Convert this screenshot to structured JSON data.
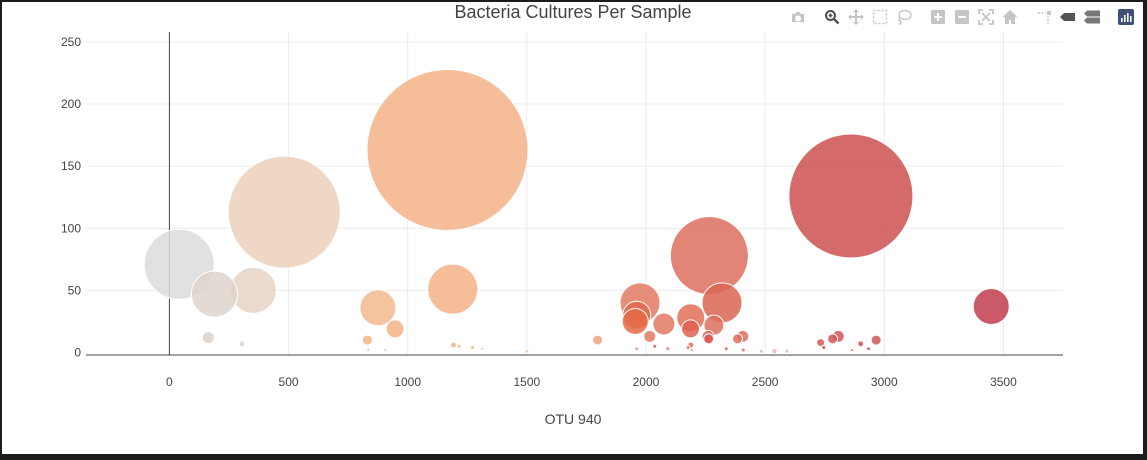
{
  "chart_data": {
    "type": "scatter",
    "title": "Bacteria Cultures Per Sample",
    "xlabel": "OTU 940",
    "ylabel": "",
    "xlim": [
      -350,
      3750
    ],
    "ylim": [
      -2,
      258
    ],
    "xticks": [
      0,
      500,
      1000,
      1500,
      2000,
      2500,
      3000,
      3500
    ],
    "yticks": [
      0,
      50,
      100,
      150,
      200,
      250
    ],
    "grid": true,
    "marker_size_unit": "diameter_px",
    "points": [
      {
        "x": 1167,
        "y": 163,
        "size": 161,
        "color": "#f4b287"
      },
      {
        "x": 2860,
        "y": 126,
        "size": 124,
        "color": "#cc5050"
      },
      {
        "x": 482,
        "y": 113,
        "size": 112,
        "color": "#ecd0bb"
      },
      {
        "x": 2266,
        "y": 78,
        "size": 78,
        "color": "#dd6e5e"
      },
      {
        "x": 41,
        "y": 71,
        "size": 70,
        "color": "#dcdcdc"
      },
      {
        "x": 1189,
        "y": 51,
        "size": 50,
        "color": "#f4b287"
      },
      {
        "x": 352,
        "y": 50,
        "size": 46,
        "color": "#e6d3c6"
      },
      {
        "x": 189,
        "y": 47,
        "size": 46,
        "color": "#ddd3cb"
      },
      {
        "x": 2319,
        "y": 40,
        "size": 40,
        "color": "#da6552"
      },
      {
        "x": 1975,
        "y": 40,
        "size": 40,
        "color": "#e27a61"
      },
      {
        "x": 3449,
        "y": 37,
        "size": 36,
        "color": "#c13d4c"
      },
      {
        "x": 875,
        "y": 36,
        "size": 36,
        "color": "#f2b88f"
      },
      {
        "x": 1961,
        "y": 30,
        "size": 28,
        "color": "#e2694e"
      },
      {
        "x": 2188,
        "y": 28,
        "size": 28,
        "color": "#e07058"
      },
      {
        "x": 1955,
        "y": 25,
        "size": 26,
        "color": "#e56a48"
      },
      {
        "x": 2075,
        "y": 23,
        "size": 22,
        "color": "#e27a61"
      },
      {
        "x": 2285,
        "y": 22,
        "size": 20,
        "color": "#dd6e5e"
      },
      {
        "x": 947,
        "y": 19,
        "size": 18,
        "color": "#f4b287"
      },
      {
        "x": 2187,
        "y": 19,
        "size": 18,
        "color": "#e06050"
      },
      {
        "x": 2016,
        "y": 13,
        "size": 12,
        "color": "#e27a61"
      },
      {
        "x": 2406,
        "y": 13,
        "size": 12,
        "color": "#dd6e5e"
      },
      {
        "x": 2807,
        "y": 13,
        "size": 12,
        "color": "#d05858"
      },
      {
        "x": 163,
        "y": 12,
        "size": 12,
        "color": "#dcd2c9"
      },
      {
        "x": 2260,
        "y": 13,
        "size": 12,
        "color": "#dd6e5e"
      },
      {
        "x": 2384,
        "y": 11,
        "size": 10,
        "color": "#dd6e5e"
      },
      {
        "x": 2783,
        "y": 11,
        "size": 10,
        "color": "#d05858"
      },
      {
        "x": 2263,
        "y": 11,
        "size": 10,
        "color": "#dd5050"
      },
      {
        "x": 2966,
        "y": 10,
        "size": 10,
        "color": "#d05858"
      },
      {
        "x": 1797,
        "y": 10,
        "size": 10,
        "color": "#eca67e"
      },
      {
        "x": 831,
        "y": 10,
        "size": 10,
        "color": "#f4b287"
      },
      {
        "x": 2733,
        "y": 8,
        "size": 8,
        "color": "#d05858"
      },
      {
        "x": 2188,
        "y": 6,
        "size": 6,
        "color": "#e07058"
      },
      {
        "x": 2901,
        "y": 7,
        "size": 6,
        "color": "#d05858"
      },
      {
        "x": 305,
        "y": 7,
        "size": 6,
        "color": "#e6d3c6"
      },
      {
        "x": 1192,
        "y": 6,
        "size": 6,
        "color": "#f4b287"
      },
      {
        "x": 2037,
        "y": 5,
        "size": 4,
        "color": "#e05050"
      },
      {
        "x": 1216,
        "y": 5,
        "size": 4,
        "color": "#f4b287"
      },
      {
        "x": 1272,
        "y": 4,
        "size": 4,
        "color": "#f4b287"
      },
      {
        "x": 2746,
        "y": 4,
        "size": 4,
        "color": "#d04040"
      },
      {
        "x": 2934,
        "y": 3,
        "size": 4,
        "color": "#d05858"
      },
      {
        "x": 1313,
        "y": 3,
        "size": 3,
        "color": "#f4b287"
      },
      {
        "x": 1961,
        "y": 3,
        "size": 4,
        "color": "#e2a088"
      },
      {
        "x": 2177,
        "y": 4,
        "size": 4,
        "color": "#e07058"
      },
      {
        "x": 2091,
        "y": 3,
        "size": 4,
        "color": "#e27a61"
      },
      {
        "x": 2337,
        "y": 3,
        "size": 4,
        "color": "#da6552"
      },
      {
        "x": 2539,
        "y": 1,
        "size": 5,
        "color": "#eab0b0"
      },
      {
        "x": 2484,
        "y": 1,
        "size": 4,
        "color": "#eab0b0"
      },
      {
        "x": 2591,
        "y": 1,
        "size": 4,
        "color": "#eab0b0"
      },
      {
        "x": 2408,
        "y": 2,
        "size": 4,
        "color": "#dd6e5e"
      },
      {
        "x": 1500,
        "y": 1,
        "size": 4,
        "color": "#f4c4a8"
      },
      {
        "x": 2192,
        "y": 2,
        "size": 3,
        "color": "#e07058"
      },
      {
        "x": 834,
        "y": 2,
        "size": 3,
        "color": "#f4b287"
      },
      {
        "x": 905,
        "y": 2,
        "size": 3,
        "color": "#f4b287"
      },
      {
        "x": 2864,
        "y": 2,
        "size": 3,
        "color": "#d05858"
      }
    ]
  },
  "modebar": {
    "buttons": [
      {
        "name": "camera-icon",
        "active": false
      },
      {
        "name": "zoom-icon",
        "active": true
      },
      {
        "name": "pan-icon",
        "active": false
      },
      {
        "name": "box-select-icon",
        "active": false
      },
      {
        "name": "lasso-select-icon",
        "active": false
      },
      {
        "name": "zoom-in-icon",
        "active": false
      },
      {
        "name": "zoom-out-icon",
        "active": false
      },
      {
        "name": "autoscale-icon",
        "active": false
      },
      {
        "name": "home-icon",
        "active": false
      },
      {
        "name": "spike-lines-icon",
        "active": false
      },
      {
        "name": "hover-closest-icon",
        "active": false
      },
      {
        "name": "hover-compare-icon",
        "active": false
      },
      {
        "name": "plotly-logo-icon",
        "active": false
      }
    ],
    "icon_color": "#c5c5c5",
    "active_color": "#505050",
    "logo_color": "#3f4f75"
  }
}
